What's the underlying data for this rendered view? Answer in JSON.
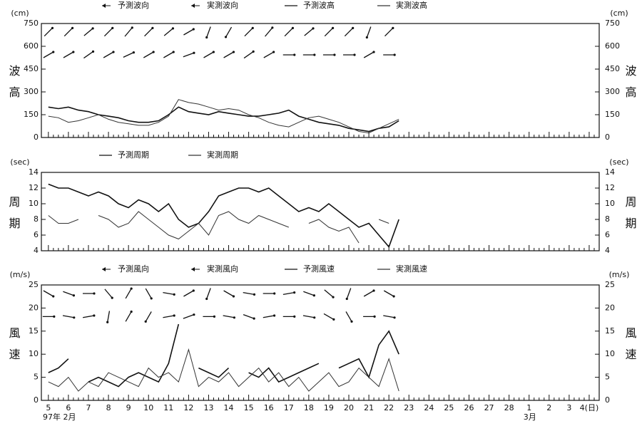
{
  "chart_data": [
    {
      "type": "line",
      "y_label": "波高",
      "y_unit": "(cm)",
      "ylim": [
        0,
        750
      ],
      "yticks": [
        0,
        150,
        300,
        450,
        600,
        750
      ],
      "x": [
        0,
        0.5,
        1,
        1.5,
        2,
        2.5,
        3,
        3.5,
        4,
        4.5,
        5,
        5.5,
        6,
        6.5,
        7,
        7.5,
        8,
        8.5,
        9,
        9.5,
        10,
        10.5,
        11,
        11.5,
        12,
        12.5,
        13,
        13.5,
        14,
        14.5,
        15,
        15.5,
        16,
        16.5,
        17,
        17.5
      ],
      "series": [
        {
          "name": "予測波向",
          "type": "arrow",
          "color": "#111111",
          "x": [
            0,
            1,
            2,
            3,
            4,
            5,
            6,
            7,
            8,
            9,
            10,
            11,
            12,
            13,
            14,
            15,
            16,
            17
          ],
          "values": [
            45,
            45,
            50,
            45,
            40,
            45,
            50,
            60,
            200,
            210,
            45,
            40,
            45,
            50,
            45,
            45,
            200,
            45
          ]
        },
        {
          "name": "実測波向",
          "type": "arrow",
          "color": "#111111",
          "x": [
            0,
            1,
            2,
            3,
            4,
            5,
            6,
            7,
            8,
            9,
            10,
            11,
            12,
            13,
            14,
            15,
            16,
            17
          ],
          "values": [
            60,
            60,
            55,
            60,
            65,
            60,
            60,
            70,
            60,
            60,
            55,
            60,
            90,
            90,
            90,
            90,
            60,
            90
          ]
        },
        {
          "name": "予測波高",
          "type": "line",
          "color": "#111111",
          "values": [
            200,
            190,
            200,
            180,
            170,
            150,
            140,
            130,
            110,
            100,
            100,
            110,
            150,
            200,
            170,
            160,
            150,
            170,
            160,
            150,
            140,
            140,
            150,
            160,
            180,
            140,
            120,
            100,
            90,
            80,
            60,
            50,
            40,
            60,
            70,
            110
          ]
        },
        {
          "name": "実測波高",
          "type": "line",
          "color": "#333333",
          "values": [
            140,
            130,
            100,
            110,
            130,
            150,
            120,
            100,
            90,
            80,
            80,
            100,
            140,
            250,
            230,
            220,
            200,
            180,
            190,
            180,
            150,
            130,
            100,
            80,
            70,
            100,
            130,
            140,
            120,
            100,
            70,
            40,
            30,
            60,
            90,
            120
          ]
        }
      ]
    },
    {
      "type": "line",
      "y_label": "周期",
      "y_unit": "(sec)",
      "ylim": [
        4,
        14
      ],
      "yticks": [
        4,
        6,
        8,
        10,
        12,
        14
      ],
      "x": [
        0,
        0.5,
        1,
        1.5,
        2,
        2.5,
        3,
        3.5,
        4,
        4.5,
        5,
        5.5,
        6,
        6.5,
        7,
        7.5,
        8,
        8.5,
        9,
        9.5,
        10,
        10.5,
        11,
        11.5,
        12,
        12.5,
        13,
        13.5,
        14,
        14.5,
        15,
        15.5,
        16,
        16.5,
        17,
        17.5
      ],
      "series": [
        {
          "name": "予測周期",
          "type": "line",
          "color": "#111111",
          "values": [
            12.5,
            12,
            12,
            11.5,
            11,
            11.5,
            11,
            10,
            9.5,
            10.5,
            10,
            9,
            10,
            8,
            7,
            7.5,
            9,
            11,
            11.5,
            12,
            12,
            11.5,
            12,
            11,
            10,
            9,
            9.5,
            9,
            10,
            9,
            8,
            7,
            7.5,
            6,
            4.5,
            8
          ]
        },
        {
          "name": "実測周期",
          "type": "line",
          "color": "#333333",
          "values": [
            8.5,
            7.5,
            7.5,
            8,
            null,
            8.5,
            8,
            7,
            7.5,
            9,
            8,
            7,
            6,
            5.5,
            6.5,
            7.5,
            6,
            8.5,
            9,
            8,
            7.5,
            8.5,
            8,
            7.5,
            7,
            null,
            7.5,
            8,
            7,
            6.5,
            7,
            5,
            null,
            8,
            7.5,
            null
          ]
        }
      ]
    },
    {
      "type": "line",
      "y_label": "風速",
      "y_unit": "(m/s)",
      "ylim": [
        0,
        25
      ],
      "yticks": [
        0,
        5,
        10,
        15,
        20,
        25
      ],
      "xlim": [
        -0.35,
        27.5
      ],
      "xticks": [
        {
          "value": 0,
          "label": "5"
        },
        {
          "value": 1,
          "label": "6"
        },
        {
          "value": 2,
          "label": "7"
        },
        {
          "value": 3,
          "label": "8"
        },
        {
          "value": 4,
          "label": "9"
        },
        {
          "value": 5,
          "label": "10"
        },
        {
          "value": 6,
          "label": "11"
        },
        {
          "value": 7,
          "label": "12"
        },
        {
          "value": 8,
          "label": "13"
        },
        {
          "value": 9,
          "label": "14"
        },
        {
          "value": 10,
          "label": "15"
        },
        {
          "value": 11,
          "label": "16"
        },
        {
          "value": 12,
          "label": "17"
        },
        {
          "value": 13,
          "label": "18"
        },
        {
          "value": 14,
          "label": "19"
        },
        {
          "value": 15,
          "label": "20"
        },
        {
          "value": 16,
          "label": "21"
        },
        {
          "value": 17,
          "label": "22"
        },
        {
          "value": 18,
          "label": "23"
        },
        {
          "value": 19,
          "label": "24"
        },
        {
          "value": 20,
          "label": "25"
        },
        {
          "value": 21,
          "label": "26"
        },
        {
          "value": 22,
          "label": "27"
        },
        {
          "value": 23,
          "label": "28"
        },
        {
          "value": 24,
          "label": "1"
        },
        {
          "value": 25,
          "label": "2"
        },
        {
          "value": 26,
          "label": "3"
        },
        {
          "value": 27,
          "label": "4(日)"
        }
      ],
      "annotations": [
        "97年 2月",
        "3月"
      ],
      "x": [
        0,
        0.5,
        1,
        1.5,
        2,
        2.5,
        3,
        3.5,
        4,
        4.5,
        5,
        5.5,
        6,
        6.5,
        7,
        7.5,
        8,
        8.5,
        9,
        9.5,
        10,
        10.5,
        11,
        11.5,
        12,
        12.5,
        13,
        13.5,
        14,
        14.5,
        15,
        15.5,
        16,
        16.5,
        17,
        17.5
      ],
      "series": [
        {
          "name": "予測風向",
          "type": "arrow",
          "color": "#111111",
          "x": [
            0,
            1,
            2,
            3,
            4,
            5,
            6,
            7,
            8,
            9,
            10,
            11,
            12,
            13,
            14,
            15,
            16,
            17
          ],
          "values": [
            120,
            110,
            90,
            140,
            30,
            150,
            100,
            60,
            200,
            120,
            100,
            90,
            80,
            110,
            130,
            200,
            60,
            120
          ]
        },
        {
          "name": "実測風向",
          "type": "arrow",
          "color": "#111111",
          "x": [
            0,
            1,
            2,
            3,
            4,
            5,
            6,
            7,
            8,
            9,
            10,
            11,
            12,
            13,
            14,
            15,
            16,
            17
          ],
          "values": [
            90,
            100,
            80,
            190,
            30,
            210,
            80,
            70,
            90,
            100,
            110,
            80,
            90,
            100,
            120,
            150,
            90,
            100
          ]
        },
        {
          "name": "予測風速",
          "type": "line",
          "color": "#111111",
          "values": [
            6,
            7,
            9,
            null,
            4,
            5,
            4,
            3,
            5,
            6,
            5,
            4,
            8,
            16.5,
            null,
            7,
            6,
            5,
            7,
            null,
            6,
            5,
            7,
            4,
            5,
            6,
            7,
            8,
            null,
            7,
            8,
            9,
            5,
            12,
            15,
            10
          ]
        },
        {
          "name": "実測風速",
          "type": "line",
          "color": "#333333",
          "values": [
            4,
            3,
            5,
            2,
            4,
            3,
            6,
            5,
            4,
            3,
            7,
            5,
            6,
            4,
            11,
            3,
            5,
            4,
            6,
            3,
            5,
            7,
            4,
            6,
            3,
            5,
            2,
            4,
            6,
            3,
            4,
            7,
            5,
            3,
            9,
            2
          ]
        }
      ]
    }
  ]
}
